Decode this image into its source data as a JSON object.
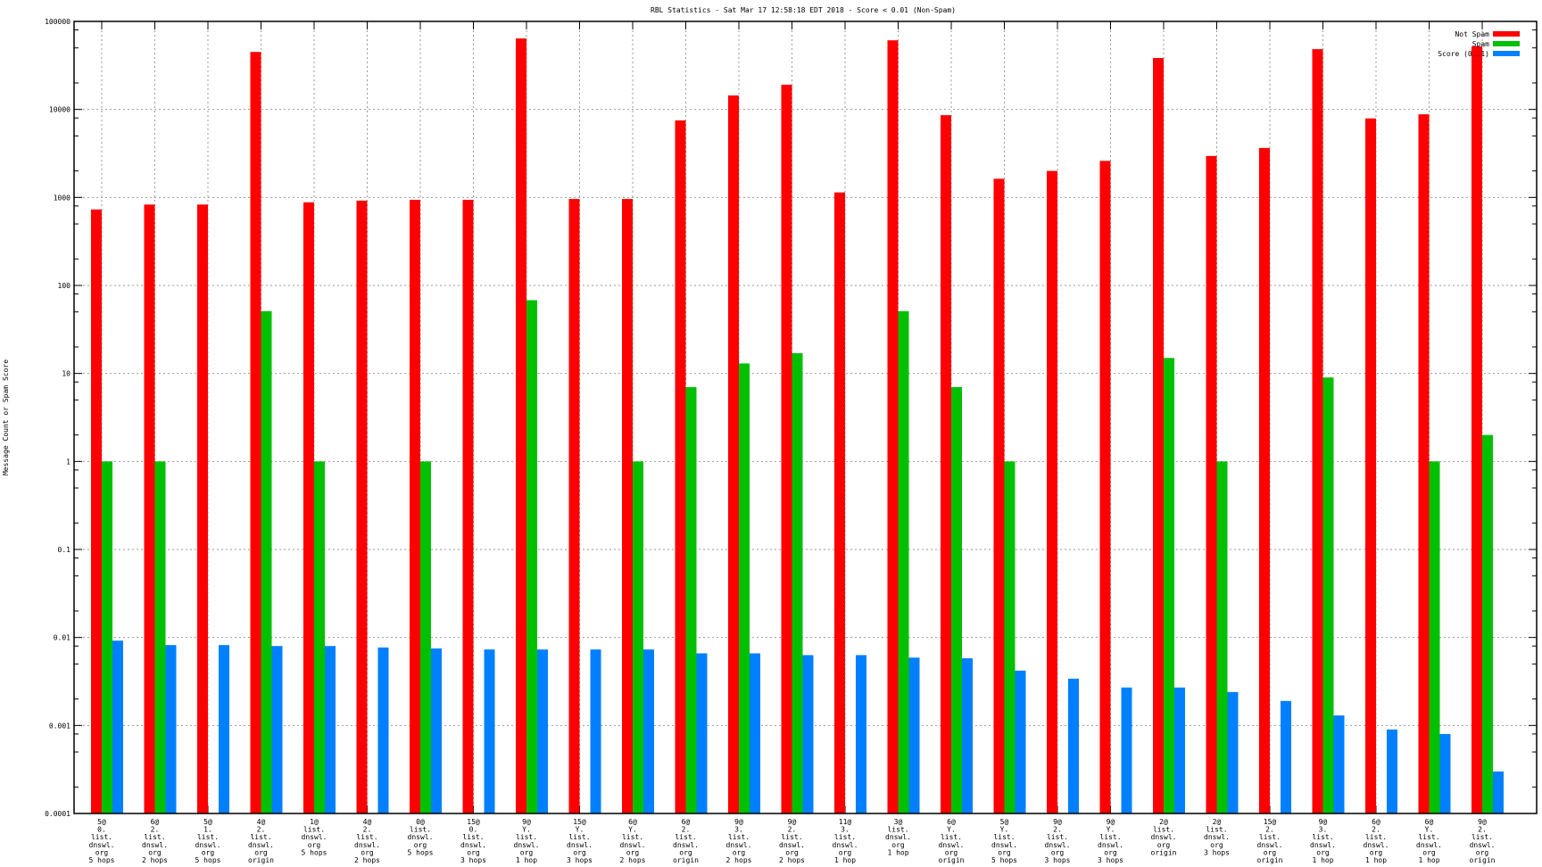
{
  "chart_data": {
    "type": "bar",
    "title": "RBL Statistics - Sat Mar 17 12:58:18 EDT 2018 - Score < 0.01 (Non-Spam)",
    "xlabel": "",
    "ylabel": "Message Count or Spam Score",
    "yscale": "log",
    "ylim": [
      0.0001,
      100000
    ],
    "yticks": [
      "0.0001",
      "0.001",
      "0.01",
      "0.1",
      "1",
      "10",
      "100",
      "1000",
      "10000",
      "100000"
    ],
    "grid": true,
    "legend_position": "top-right",
    "categories": [
      [
        "5@",
        "0.",
        "list.",
        "dnswl.",
        "org",
        "5 hops"
      ],
      [
        "6@",
        "2.",
        "list.",
        "dnswl.",
        "org",
        "2 hops"
      ],
      [
        "5@",
        "1.",
        "list.",
        "dnswl.",
        "org",
        "5 hops"
      ],
      [
        "4@",
        "2.",
        "list.",
        "dnswl.",
        "org",
        "origin"
      ],
      [
        "1@",
        "list.",
        "dnswl.",
        "org",
        "5 hops"
      ],
      [
        "4@",
        "2.",
        "list.",
        "dnswl.",
        "org",
        "2 hops"
      ],
      [
        "0@",
        "list.",
        "dnswl.",
        "org",
        "5 hops"
      ],
      [
        "15@",
        "0.",
        "list.",
        "dnswl.",
        "org",
        "3 hops"
      ],
      [
        "9@",
        "Y.",
        "list.",
        "dnswl.",
        "org",
        "1 hop"
      ],
      [
        "15@",
        "Y.",
        "list.",
        "dnswl.",
        "org",
        "3 hops"
      ],
      [
        "6@",
        "Y.",
        "list.",
        "dnswl.",
        "org",
        "2 hops"
      ],
      [
        "6@",
        "2.",
        "list.",
        "dnswl.",
        "org",
        "origin"
      ],
      [
        "9@",
        "3.",
        "list.",
        "dnswl.",
        "org",
        "2 hops"
      ],
      [
        "9@",
        "2.",
        "list.",
        "dnswl.",
        "org",
        "2 hops"
      ],
      [
        "11@",
        "3.",
        "list.",
        "dnswl.",
        "org",
        "1 hop"
      ],
      [
        "3@",
        "list.",
        "dnswl.",
        "org",
        "1 hop"
      ],
      [
        "6@",
        "Y.",
        "list.",
        "dnswl.",
        "org",
        "origin"
      ],
      [
        "5@",
        "Y.",
        "list.",
        "dnswl.",
        "org",
        "5 hops"
      ],
      [
        "9@",
        "2.",
        "list.",
        "dnswl.",
        "org",
        "3 hops"
      ],
      [
        "9@",
        "Y.",
        "list.",
        "dnswl.",
        "org",
        "3 hops"
      ],
      [
        "2@",
        "list.",
        "dnswl.",
        "org",
        "origin"
      ],
      [
        "2@",
        "list.",
        "dnswl.",
        "org",
        "3 hops"
      ],
      [
        "15@",
        "2.",
        "list.",
        "dnswl.",
        "org",
        "origin"
      ],
      [
        "9@",
        "3.",
        "list.",
        "dnswl.",
        "org",
        "1 hop"
      ],
      [
        "6@",
        "2.",
        "list.",
        "dnswl.",
        "org",
        "1 hop"
      ],
      [
        "6@",
        "Y.",
        "list.",
        "dnswl.",
        "org",
        "1 hop"
      ],
      [
        "9@",
        "2.",
        "list.",
        "dnswl.",
        "org",
        "origin"
      ]
    ],
    "series": [
      {
        "name": "Not Spam",
        "color": "#ff0000",
        "values": [
          730,
          830,
          830,
          45000,
          880,
          920,
          940,
          940,
          64000,
          960,
          960,
          7500,
          14400,
          19100,
          1140,
          61000,
          8600,
          1630,
          2000,
          2600,
          38400,
          2960,
          3650,
          48400,
          7900,
          8800,
          52000
        ]
      },
      {
        "name": "Spam",
        "color": "#00c000",
        "values": [
          1,
          1,
          null,
          51,
          1,
          null,
          1,
          null,
          68,
          null,
          1,
          7,
          13,
          17,
          null,
          51,
          7,
          1,
          null,
          null,
          15,
          1,
          null,
          9,
          null,
          1,
          2
        ]
      },
      {
        "name": "Score (0..1)",
        "color": "#0080ff",
        "values": [
          0.0092,
          0.0082,
          0.0082,
          0.008,
          0.008,
          0.0077,
          0.0075,
          0.0073,
          0.0073,
          0.0073,
          0.0073,
          0.0066,
          0.0066,
          0.0063,
          0.0063,
          0.0059,
          0.0058,
          0.0042,
          0.0034,
          0.0027,
          0.0027,
          0.0024,
          0.0019,
          0.0013,
          0.0009,
          0.0008,
          0.0003
        ]
      }
    ]
  }
}
